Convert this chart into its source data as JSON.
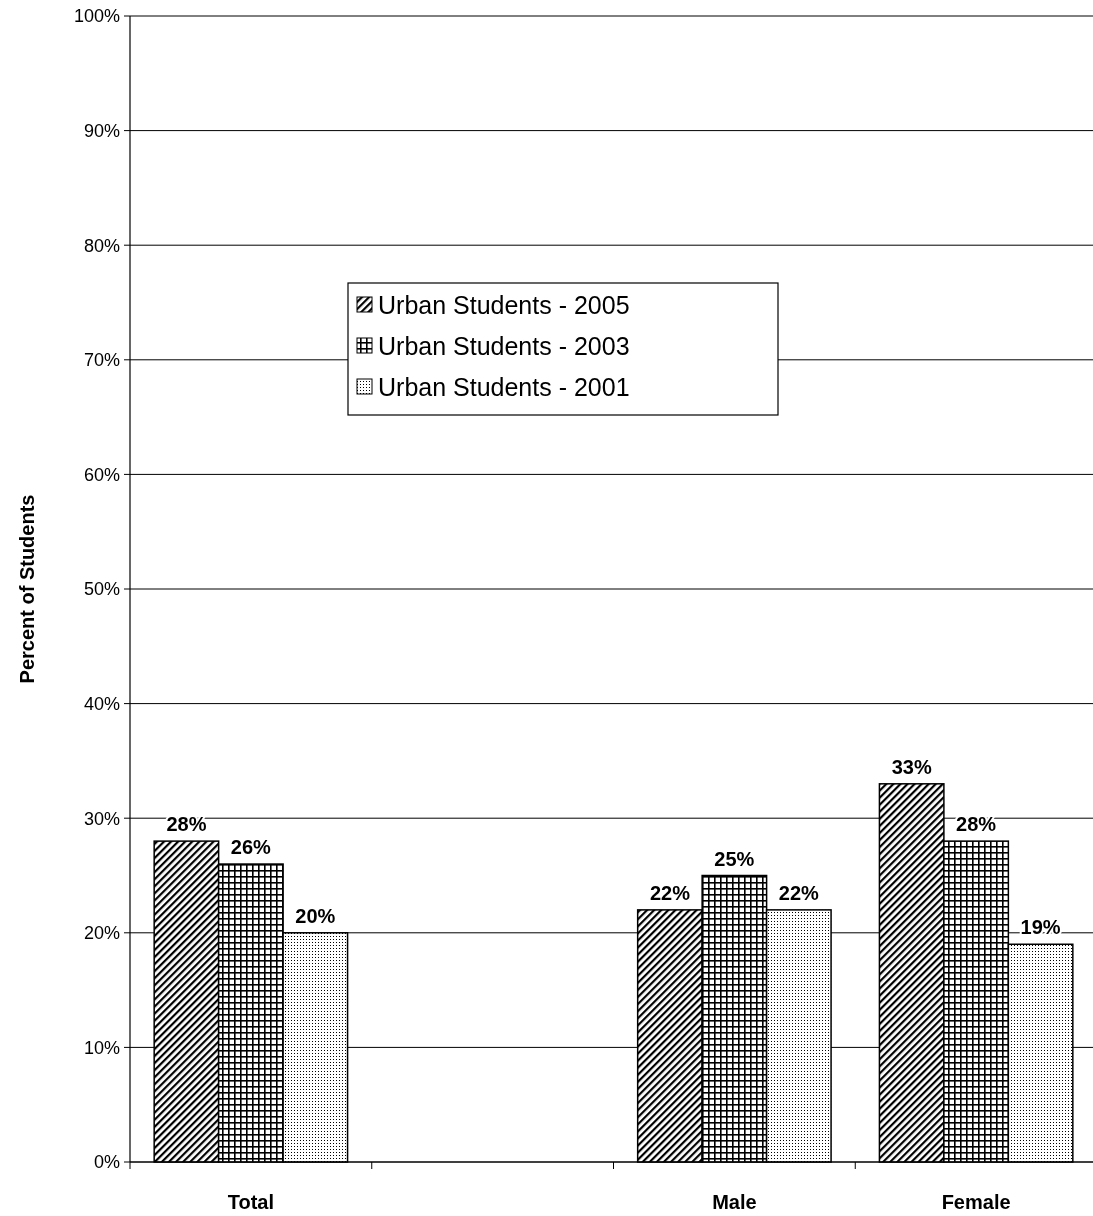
{
  "chart_data": {
    "type": "bar",
    "ylabel": "Percent of Students",
    "categories": [
      "Total",
      null,
      "Male",
      "Female"
    ],
    "series": [
      {
        "name": "Urban Students - 2005",
        "color": "#000000",
        "values": [
          28,
          null,
          22,
          33
        ],
        "value_labels": [
          "28%",
          null,
          "22%",
          "33%"
        ]
      },
      {
        "name": "Urban Students - 2003",
        "color": "#000000",
        "values": [
          26,
          null,
          25,
          28
        ],
        "value_labels": [
          "26%",
          null,
          "25%",
          "28%"
        ]
      },
      {
        "name": "Urban Students - 2001",
        "color": "#000000",
        "values": [
          20,
          null,
          22,
          19
        ],
        "value_labels": [
          "20%",
          null,
          "22%",
          "19%"
        ]
      }
    ],
    "ylim": [
      0,
      100
    ],
    "yticks": [
      {
        "value": 0,
        "label": "0%"
      },
      {
        "value": 10,
        "label": "10%"
      },
      {
        "value": 20,
        "label": "20%"
      },
      {
        "value": 30,
        "label": "30%"
      },
      {
        "value": 40,
        "label": "40%"
      },
      {
        "value": 50,
        "label": "50%"
      },
      {
        "value": 60,
        "label": "60%"
      },
      {
        "value": 70,
        "label": "70%"
      },
      {
        "value": 80,
        "label": "80%"
      },
      {
        "value": 90,
        "label": "90%"
      },
      {
        "value": 100,
        "label": "100%"
      }
    ],
    "grid": "y",
    "legend": "top"
  }
}
